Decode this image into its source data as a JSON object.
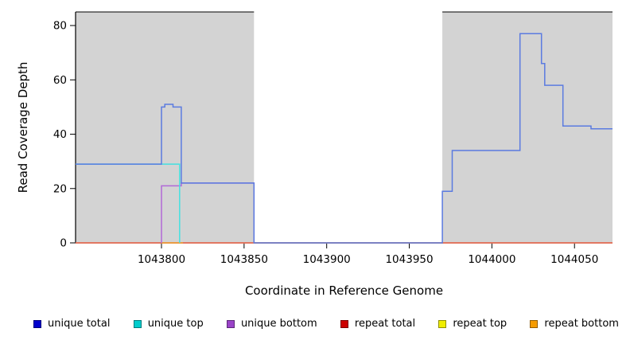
{
  "chart_data": {
    "type": "line",
    "style": "step-coverage-plot",
    "title": "",
    "xlabel": "Coordinate in Reference Genome",
    "ylabel": "Read Coverage Depth",
    "xlim": [
      1043748,
      1044073
    ],
    "ylim": [
      0,
      85
    ],
    "x_ticks": [
      1043800,
      1043850,
      1043900,
      1043950,
      1044000,
      1044050
    ],
    "y_ticks": [
      0,
      20,
      40,
      60,
      80
    ],
    "grid": false,
    "shaded_regions": {
      "color": "#d3d3d3",
      "ranges": [
        [
          1043748,
          1043856
        ],
        [
          1043970,
          1044073
        ]
      ]
    },
    "series": [
      {
        "name": "repeat_top",
        "color": "#f2ee3a",
        "points": [
          [
            1043748,
            0
          ],
          [
            1044073,
            0
          ]
        ]
      },
      {
        "name": "repeat_total",
        "color": "#e85c5c",
        "points": [
          [
            1043748,
            0
          ],
          [
            1044073,
            0
          ]
        ]
      },
      {
        "name": "repeat_bottom",
        "color": "#f0a038",
        "points": [
          [
            1043800,
            0
          ],
          [
            1043813,
            0
          ]
        ]
      },
      {
        "name": "unique_bottom",
        "color": "#b168d8",
        "points": [
          [
            1043800,
            0
          ],
          [
            1043800,
            21
          ],
          [
            1043812,
            21
          ],
          [
            1043812,
            22
          ],
          [
            1043856,
            22
          ],
          [
            1043856,
            0
          ]
        ]
      },
      {
        "name": "unique_top",
        "color": "#45e0e0",
        "points": [
          [
            1043748,
            29
          ],
          [
            1043811,
            29
          ],
          [
            1043811,
            0
          ]
        ]
      },
      {
        "name": "unique_total",
        "color": "#5b7be0",
        "points": [
          [
            1043748,
            29
          ],
          [
            1043800,
            29
          ],
          [
            1043800,
            50
          ],
          [
            1043802,
            50
          ],
          [
            1043802,
            51
          ],
          [
            1043807,
            51
          ],
          [
            1043807,
            50
          ],
          [
            1043812,
            50
          ],
          [
            1043812,
            22
          ],
          [
            1043856,
            22
          ],
          [
            1043856,
            0
          ],
          [
            1043970,
            0
          ],
          [
            1043970,
            19
          ],
          [
            1043976,
            19
          ],
          [
            1043976,
            34
          ],
          [
            1044017,
            34
          ],
          [
            1044017,
            77
          ],
          [
            1044030,
            77
          ],
          [
            1044030,
            66
          ],
          [
            1044032,
            66
          ],
          [
            1044032,
            58
          ],
          [
            1044043,
            58
          ],
          [
            1044043,
            43
          ],
          [
            1044060,
            43
          ],
          [
            1044060,
            42
          ],
          [
            1044073,
            42
          ]
        ]
      }
    ],
    "legend": {
      "position": "bottom",
      "items": [
        {
          "label": "unique total",
          "color": "#0000cd"
        },
        {
          "label": "unique top",
          "color": "#00cdcd"
        },
        {
          "label": "unique bottom",
          "color": "#9a43c8"
        },
        {
          "label": "repeat total",
          "color": "#cc0000"
        },
        {
          "label": "repeat top",
          "color": "#f0ee00"
        },
        {
          "label": "repeat bottom",
          "color": "#f59b00"
        }
      ]
    }
  }
}
